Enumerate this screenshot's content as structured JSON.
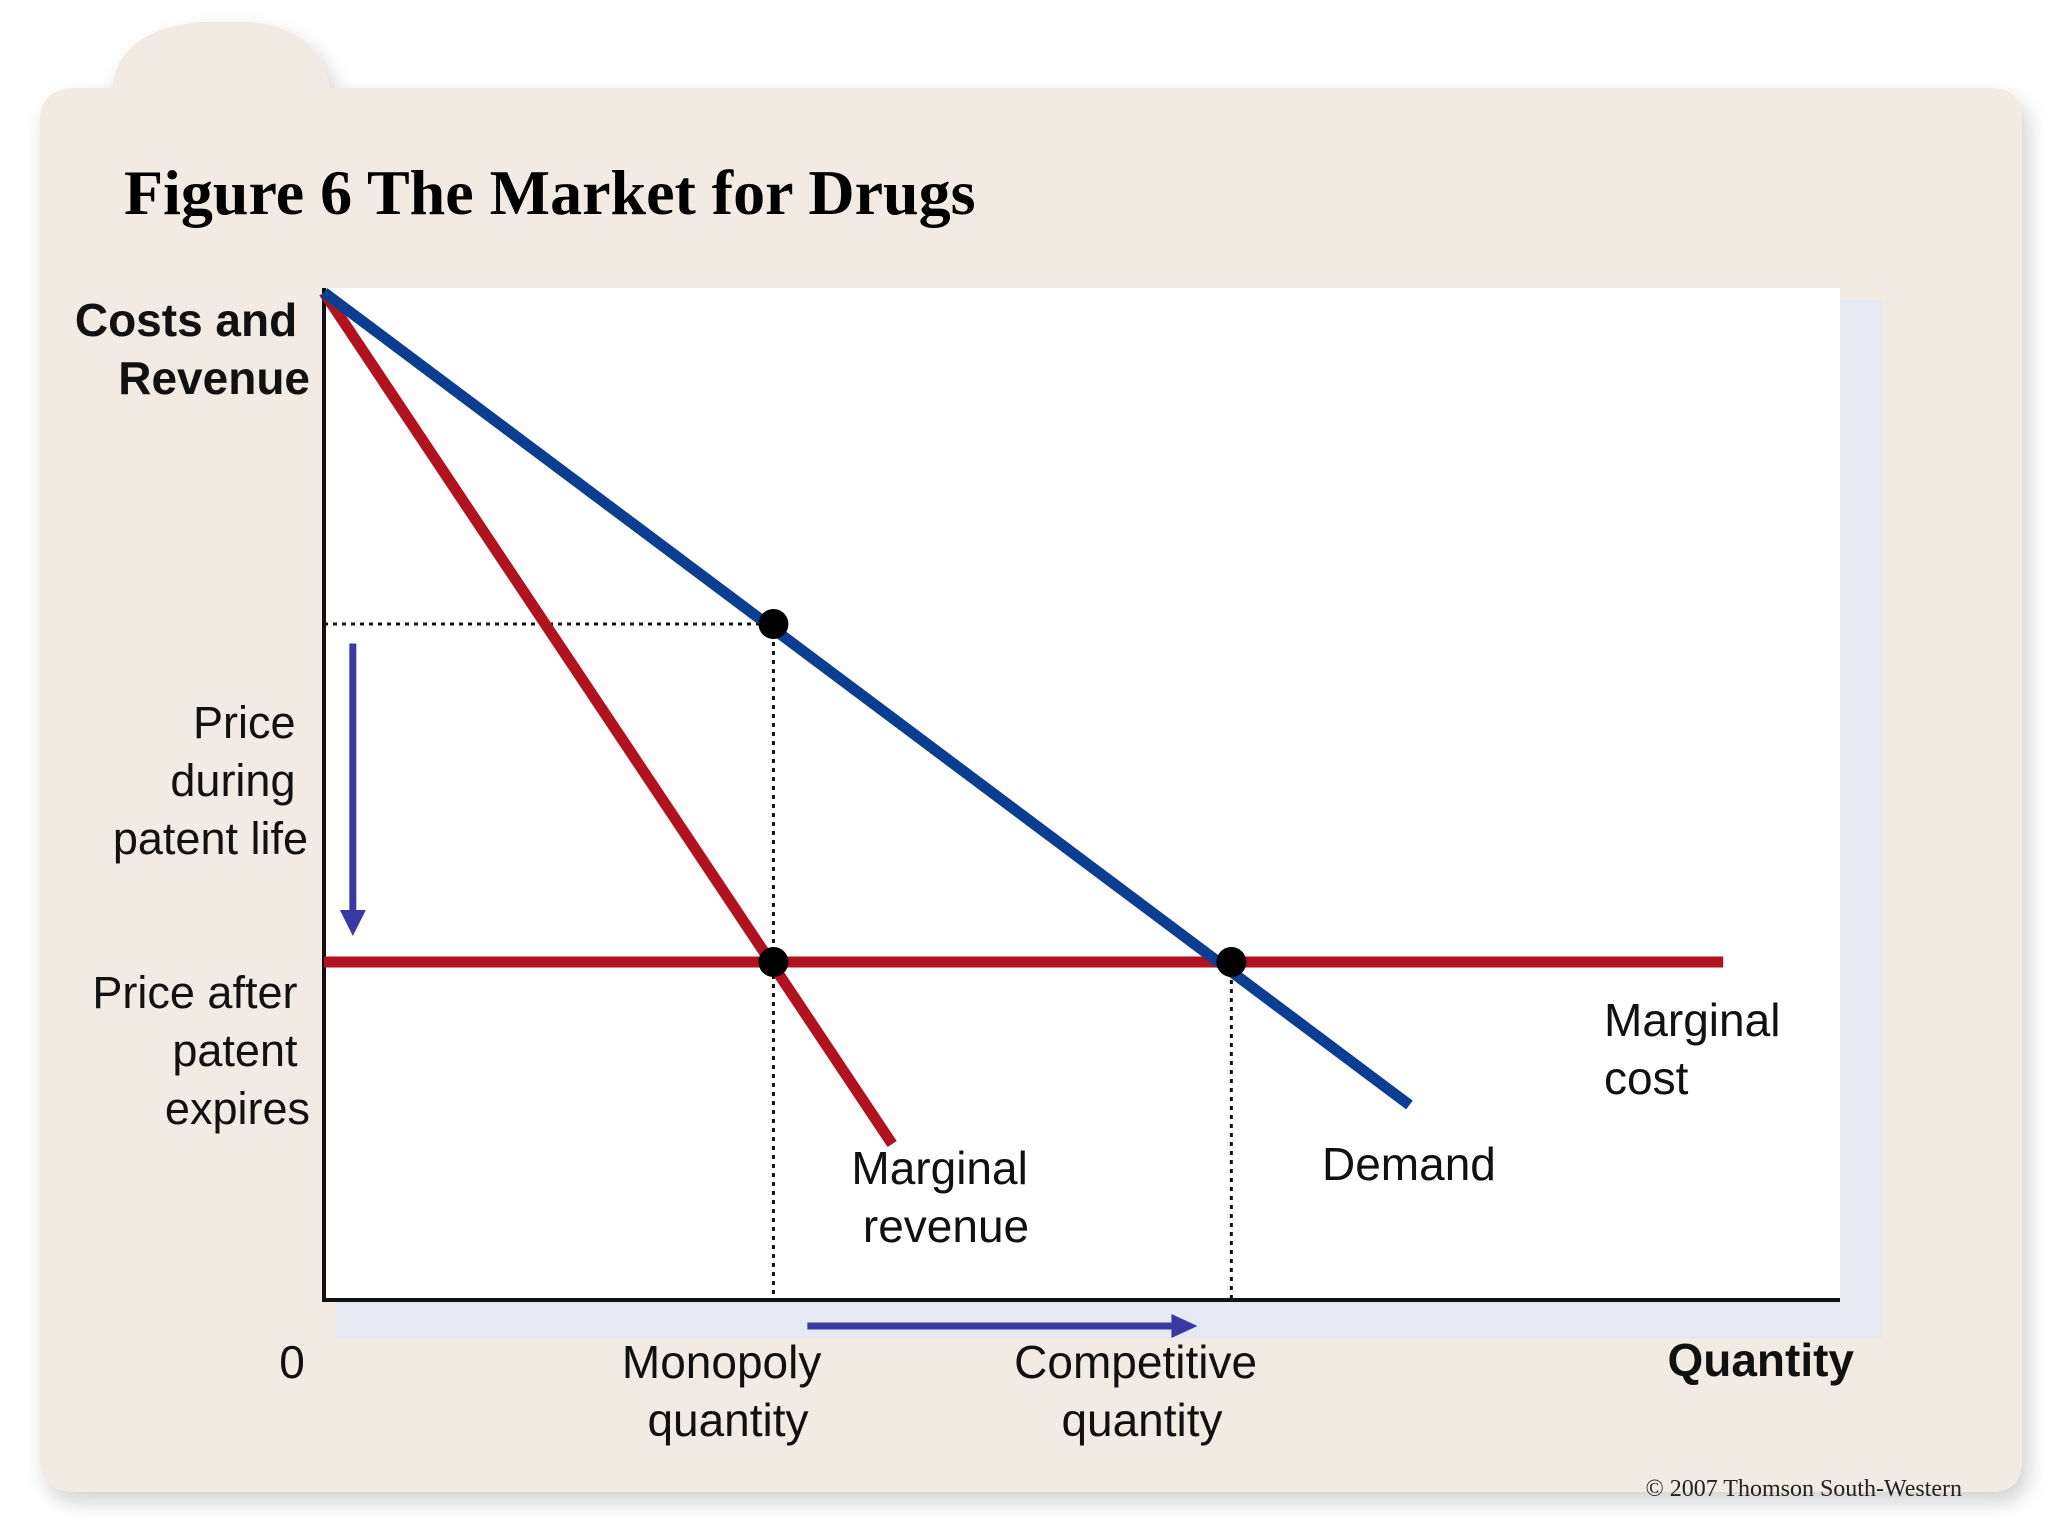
{
  "figure": {
    "title": "Figure 6 The Market for Drugs",
    "copyright": "© 2007 Thomson South-Western"
  },
  "colors": {
    "panel": "#f1ebe4",
    "plot_bg": "#ffffff",
    "plot_shadow": "#e6e9f2",
    "demand": "#0b3d91",
    "red": "#b0121f",
    "arrow": "#3a39a3"
  },
  "chart_data": {
    "type": "line",
    "ylabel_lines": [
      "Costs and",
      "Revenue"
    ],
    "xlabel": "Quantity",
    "origin_label": "0",
    "xlim": [
      0,
      100
    ],
    "ylim": [
      0,
      100
    ],
    "series": [
      {
        "name": "Demand",
        "label_lines": [
          "Demand"
        ],
        "points": [
          [
            0,
            77.5
          ],
          [
            64,
            15
          ]
        ]
      },
      {
        "name": "Marginal revenue",
        "label_lines": [
          "Marginal",
          "revenue"
        ],
        "points": [
          [
            0,
            77.5
          ],
          [
            33.5,
            12
          ]
        ]
      },
      {
        "name": "Marginal cost",
        "label_lines": [
          "Marginal",
          "cost"
        ],
        "points": [
          [
            0,
            26
          ],
          [
            82.5,
            26
          ]
        ]
      }
    ],
    "points_marked": [
      {
        "name": "monopoly-demand",
        "x": 26.5,
        "y": 52
      },
      {
        "name": "monopoly-mc",
        "x": 26.5,
        "y": 26
      },
      {
        "name": "competitive-mc",
        "x": 53.5,
        "y": 26
      }
    ],
    "y_labels": [
      {
        "name": "price-during-patent",
        "y": 52,
        "lines": [
          "Price",
          "during",
          "patent life"
        ]
      },
      {
        "name": "price-after-patent",
        "y": 26,
        "lines": [
          "Price after",
          "patent",
          "expires"
        ]
      }
    ],
    "x_labels": [
      {
        "name": "monopoly-quantity",
        "x": 26.5,
        "lines": [
          "Monopoly",
          "quantity"
        ]
      },
      {
        "name": "competitive-quantity",
        "x": 53.5,
        "lines": [
          "Competitive",
          "quantity"
        ]
      }
    ],
    "arrows": [
      {
        "name": "price-drop",
        "from": [
          1.7,
          50.5
        ],
        "to": [
          1.7,
          28
        ],
        "direction": "down"
      },
      {
        "name": "quantity-rise",
        "from": [
          28.5,
          -2
        ],
        "to": [
          51.5,
          -2
        ],
        "direction": "right"
      }
    ]
  }
}
